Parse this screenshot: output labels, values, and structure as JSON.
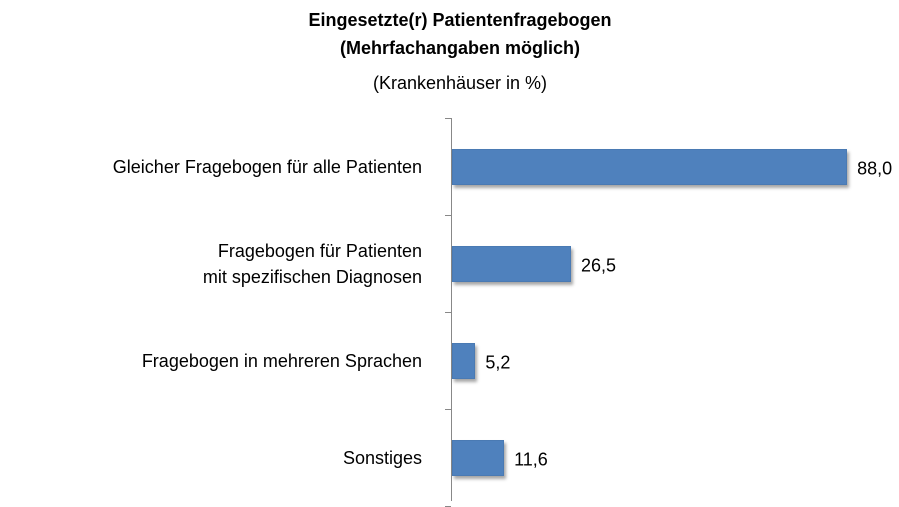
{
  "chart_data": {
    "type": "hbar",
    "title": "Eingesetzte(r) Patientenfragebogen",
    "title_line2": "(Mehrfachangaben möglich)",
    "subtitle": "(Krankenhäuser in %)",
    "categories": [
      "Gleicher Fragebogen für alle Patienten",
      "Fragebogen für Patienten mit spezifischen Diagnosen",
      "Fragebogen in mehreren Sprachen",
      "Sonstiges"
    ],
    "values": [
      88.0,
      26.5,
      5.2,
      11.6
    ],
    "value_labels": [
      "88,0",
      "26,5",
      "5,2",
      "11,6"
    ],
    "color": "#4f81bd"
  }
}
